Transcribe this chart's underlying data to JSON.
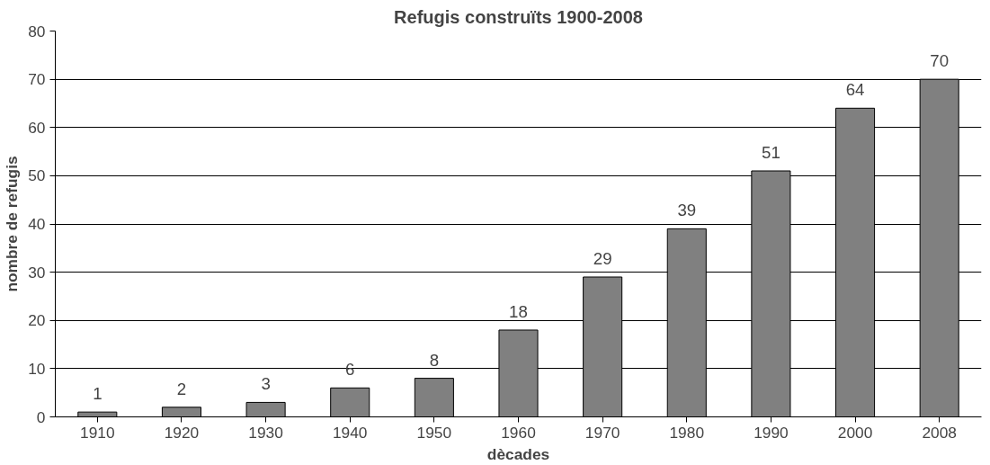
{
  "chart_data": {
    "type": "bar",
    "title": "Refugis construïts 1900-2008",
    "xlabel": "dècades",
    "ylabel": "nombre de refugis",
    "categories": [
      "1910",
      "1920",
      "1930",
      "1940",
      "1950",
      "1960",
      "1970",
      "1980",
      "1990",
      "2000",
      "2008"
    ],
    "values": [
      1,
      2,
      3,
      6,
      8,
      18,
      29,
      39,
      51,
      64,
      70
    ],
    "color": "#808080",
    "ylim": [
      0,
      80
    ],
    "yticks": [
      0,
      10,
      20,
      30,
      40,
      50,
      60,
      70,
      80
    ],
    "grid": "y",
    "data_labels": true
  }
}
